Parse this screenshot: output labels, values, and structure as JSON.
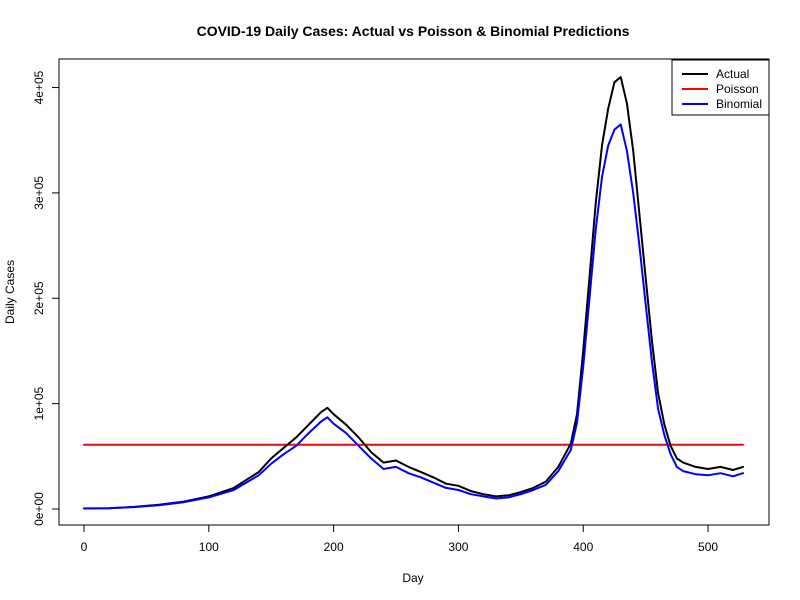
{
  "chart_data": {
    "type": "line",
    "title": "COVID-19 Daily Cases: Actual vs Poisson & Binomial Predictions",
    "xlabel": "Day",
    "ylabel": "Daily Cases",
    "xlim": [
      0,
      528
    ],
    "ylim": [
      0,
      410000
    ],
    "x_ticks": [
      0,
      100,
      200,
      300,
      400,
      500
    ],
    "x_tick_labels": [
      "0",
      "100",
      "200",
      "300",
      "400",
      "500"
    ],
    "y_ticks": [
      0,
      100000,
      200000,
      300000,
      400000
    ],
    "y_tick_labels": [
      "0e+00",
      "1e+05",
      "2e+05",
      "3e+05",
      "4e+05"
    ],
    "grid": false,
    "legend_position": "top-right",
    "x": [
      0,
      20,
      40,
      60,
      80,
      100,
      120,
      140,
      150,
      160,
      170,
      180,
      190,
      195,
      200,
      210,
      220,
      230,
      240,
      250,
      260,
      270,
      280,
      290,
      300,
      310,
      320,
      330,
      340,
      350,
      360,
      370,
      380,
      390,
      395,
      400,
      405,
      410,
      415,
      420,
      425,
      430,
      435,
      440,
      445,
      450,
      455,
      460,
      465,
      470,
      475,
      480,
      490,
      500,
      510,
      520,
      528
    ],
    "series": [
      {
        "name": "Actual",
        "color": "#000000",
        "values": [
          600,
          800,
          2000,
          4000,
          7000,
          12000,
          20000,
          35000,
          48000,
          58000,
          68000,
          80000,
          92000,
          96000,
          90000,
          80000,
          68000,
          54000,
          44000,
          46000,
          40000,
          35000,
          30000,
          24000,
          22000,
          17000,
          14000,
          12000,
          13000,
          16000,
          20000,
          26000,
          40000,
          62000,
          90000,
          150000,
          220000,
          290000,
          345000,
          380000,
          405000,
          410000,
          385000,
          340000,
          280000,
          220000,
          160000,
          110000,
          80000,
          60000,
          48000,
          44000,
          40000,
          38000,
          40000,
          37000,
          40000
        ]
      },
      {
        "name": "Poisson",
        "color": "#ff0000",
        "values": [
          61000,
          61000,
          61000,
          61000,
          61000,
          61000,
          61000,
          61000,
          61000,
          61000,
          61000,
          61000,
          61000,
          61000,
          61000,
          61000,
          61000,
          61000,
          61000,
          61000,
          61000,
          61000,
          61000,
          61000,
          61000,
          61000,
          61000,
          61000,
          61000,
          61000,
          61000,
          61000,
          61000,
          61000,
          61000,
          61000,
          61000,
          61000,
          61000,
          61000,
          61000,
          61000,
          61000,
          61000,
          61000,
          61000,
          61000,
          61000,
          61000,
          61000,
          61000,
          61000,
          61000,
          61000,
          61000,
          61000,
          61000
        ]
      },
      {
        "name": "Binomial",
        "color": "#0000ff",
        "values": [
          500,
          700,
          1800,
          3600,
          6500,
          11000,
          18000,
          32000,
          43000,
          52000,
          60000,
          72000,
          83000,
          87000,
          81000,
          72000,
          60000,
          48000,
          38000,
          40000,
          34000,
          30000,
          25000,
          20000,
          18000,
          14000,
          12000,
          10000,
          11000,
          14000,
          18000,
          23000,
          36000,
          56000,
          82000,
          135000,
          200000,
          265000,
          315000,
          345000,
          360000,
          365000,
          340000,
          300000,
          250000,
          195000,
          140000,
          95000,
          70000,
          52000,
          40000,
          36000,
          33000,
          32000,
          34000,
          31000,
          34000
        ]
      }
    ]
  }
}
